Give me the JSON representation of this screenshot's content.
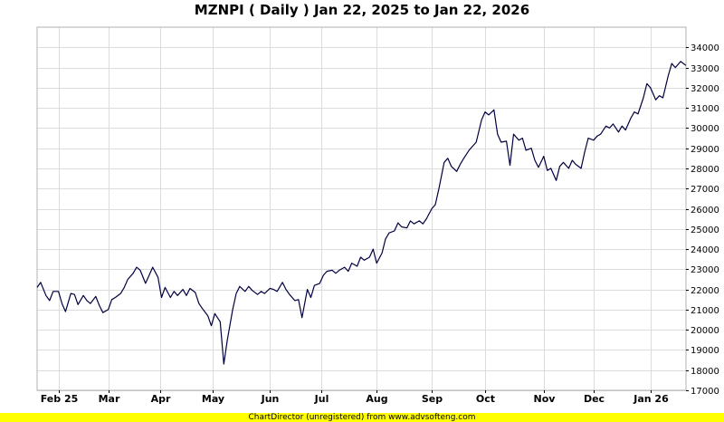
{
  "footer_text": "ChartDirector (unregistered) from www.advsofteng.com",
  "colors": {
    "line": "#000040",
    "grid": "#dcdcdc",
    "footer_bg": "#ffff00"
  },
  "chart_data": {
    "type": "line",
    "title": "MZNPI ( Daily ) Jan 22, 2025 to Jan 22, 2026",
    "xlabel": "",
    "ylabel": "",
    "ylim": [
      17000,
      35000
    ],
    "y_ticks": [
      17000,
      18000,
      19000,
      20000,
      21000,
      22000,
      23000,
      24000,
      25000,
      26000,
      27000,
      28000,
      29000,
      30000,
      31000,
      32000,
      33000,
      34000
    ],
    "x_range": [
      "2025-01-22",
      "2026-01-22"
    ],
    "x_ticks": [
      {
        "label": "Feb 25",
        "date": "2025-02-03"
      },
      {
        "label": "Mar",
        "date": "2025-03-03"
      },
      {
        "label": "Apr",
        "date": "2025-04-01"
      },
      {
        "label": "May",
        "date": "2025-05-01"
      },
      {
        "label": "Jun",
        "date": "2025-06-02"
      },
      {
        "label": "Jul",
        "date": "2025-07-01"
      },
      {
        "label": "Aug",
        "date": "2025-08-01"
      },
      {
        "label": "Sep",
        "date": "2025-09-01"
      },
      {
        "label": "Oct",
        "date": "2025-10-01"
      },
      {
        "label": "Nov",
        "date": "2025-11-03"
      },
      {
        "label": "Dec",
        "date": "2025-12-01"
      },
      {
        "label": "Jan 26",
        "date": "2026-01-02"
      }
    ],
    "grid": true,
    "legend": "none",
    "series": [
      {
        "points": [
          [
            "2025-01-22",
            22100
          ],
          [
            "2025-01-24",
            22350
          ],
          [
            "2025-01-27",
            21700
          ],
          [
            "2025-01-29",
            21450
          ],
          [
            "2025-01-31",
            21900
          ],
          [
            "2025-02-03",
            21900
          ],
          [
            "2025-02-05",
            21300
          ],
          [
            "2025-02-07",
            20900
          ],
          [
            "2025-02-10",
            21800
          ],
          [
            "2025-02-12",
            21750
          ],
          [
            "2025-02-14",
            21250
          ],
          [
            "2025-02-17",
            21700
          ],
          [
            "2025-02-19",
            21450
          ],
          [
            "2025-02-21",
            21300
          ],
          [
            "2025-02-24",
            21650
          ],
          [
            "2025-02-26",
            21200
          ],
          [
            "2025-02-28",
            20850
          ],
          [
            "2025-03-03",
            21000
          ],
          [
            "2025-03-05",
            21500
          ],
          [
            "2025-03-07",
            21600
          ],
          [
            "2025-03-10",
            21800
          ],
          [
            "2025-03-12",
            22100
          ],
          [
            "2025-03-14",
            22500
          ],
          [
            "2025-03-17",
            22800
          ],
          [
            "2025-03-19",
            23100
          ],
          [
            "2025-03-21",
            22950
          ],
          [
            "2025-03-24",
            22300
          ],
          [
            "2025-03-26",
            22700
          ],
          [
            "2025-03-28",
            23100
          ],
          [
            "2025-03-31",
            22600
          ],
          [
            "2025-04-02",
            21600
          ],
          [
            "2025-04-04",
            22100
          ],
          [
            "2025-04-07",
            21600
          ],
          [
            "2025-04-09",
            21900
          ],
          [
            "2025-04-11",
            21700
          ],
          [
            "2025-04-14",
            22000
          ],
          [
            "2025-04-16",
            21700
          ],
          [
            "2025-04-18",
            22050
          ],
          [
            "2025-04-21",
            21850
          ],
          [
            "2025-04-23",
            21300
          ],
          [
            "2025-04-25",
            21050
          ],
          [
            "2025-04-28",
            20700
          ],
          [
            "2025-04-30",
            20200
          ],
          [
            "2025-05-02",
            20800
          ],
          [
            "2025-05-05",
            20400
          ],
          [
            "2025-05-07",
            18300
          ],
          [
            "2025-05-09",
            19500
          ],
          [
            "2025-05-12",
            21000
          ],
          [
            "2025-05-14",
            21800
          ],
          [
            "2025-05-16",
            22150
          ],
          [
            "2025-05-19",
            21900
          ],
          [
            "2025-05-21",
            22150
          ],
          [
            "2025-05-23",
            21950
          ],
          [
            "2025-05-26",
            21750
          ],
          [
            "2025-05-28",
            21900
          ],
          [
            "2025-05-30",
            21800
          ],
          [
            "2025-06-02",
            22050
          ],
          [
            "2025-06-04",
            22000
          ],
          [
            "2025-06-06",
            21900
          ],
          [
            "2025-06-09",
            22350
          ],
          [
            "2025-06-11",
            22000
          ],
          [
            "2025-06-13",
            21750
          ],
          [
            "2025-06-16",
            21450
          ],
          [
            "2025-06-18",
            21500
          ],
          [
            "2025-06-20",
            20600
          ],
          [
            "2025-06-23",
            22000
          ],
          [
            "2025-06-25",
            21600
          ],
          [
            "2025-06-27",
            22200
          ],
          [
            "2025-06-30",
            22300
          ],
          [
            "2025-07-02",
            22700
          ],
          [
            "2025-07-04",
            22900
          ],
          [
            "2025-07-07",
            22950
          ],
          [
            "2025-07-09",
            22800
          ],
          [
            "2025-07-11",
            22950
          ],
          [
            "2025-07-14",
            23100
          ],
          [
            "2025-07-16",
            22900
          ],
          [
            "2025-07-18",
            23300
          ],
          [
            "2025-07-21",
            23150
          ],
          [
            "2025-07-23",
            23600
          ],
          [
            "2025-07-25",
            23450
          ],
          [
            "2025-07-28",
            23600
          ],
          [
            "2025-07-30",
            24000
          ],
          [
            "2025-08-01",
            23300
          ],
          [
            "2025-08-04",
            23800
          ],
          [
            "2025-08-06",
            24500
          ],
          [
            "2025-08-08",
            24800
          ],
          [
            "2025-08-11",
            24900
          ],
          [
            "2025-08-13",
            25300
          ],
          [
            "2025-08-15",
            25100
          ],
          [
            "2025-08-18",
            25050
          ],
          [
            "2025-08-20",
            25400
          ],
          [
            "2025-08-22",
            25250
          ],
          [
            "2025-08-25",
            25400
          ],
          [
            "2025-08-27",
            25250
          ],
          [
            "2025-08-29",
            25500
          ],
          [
            "2025-09-01",
            26000
          ],
          [
            "2025-09-03",
            26200
          ],
          [
            "2025-09-05",
            27000
          ],
          [
            "2025-09-08",
            28300
          ],
          [
            "2025-09-10",
            28500
          ],
          [
            "2025-09-12",
            28100
          ],
          [
            "2025-09-15",
            27850
          ],
          [
            "2025-09-17",
            28200
          ],
          [
            "2025-09-19",
            28500
          ],
          [
            "2025-09-22",
            28900
          ],
          [
            "2025-09-24",
            29100
          ],
          [
            "2025-09-26",
            29300
          ],
          [
            "2025-09-29",
            30400
          ],
          [
            "2025-10-01",
            30800
          ],
          [
            "2025-10-03",
            30650
          ],
          [
            "2025-10-06",
            30900
          ],
          [
            "2025-10-08",
            29700
          ],
          [
            "2025-10-10",
            29300
          ],
          [
            "2025-10-13",
            29350
          ],
          [
            "2025-10-15",
            28150
          ],
          [
            "2025-10-17",
            29700
          ],
          [
            "2025-10-20",
            29400
          ],
          [
            "2025-10-22",
            29500
          ],
          [
            "2025-10-24",
            28900
          ],
          [
            "2025-10-27",
            29000
          ],
          [
            "2025-10-29",
            28400
          ],
          [
            "2025-10-31",
            28050
          ],
          [
            "2025-11-03",
            28600
          ],
          [
            "2025-11-05",
            27900
          ],
          [
            "2025-11-07",
            28000
          ],
          [
            "2025-11-10",
            27400
          ],
          [
            "2025-11-12",
            28100
          ],
          [
            "2025-11-14",
            28300
          ],
          [
            "2025-11-17",
            28000
          ],
          [
            "2025-11-19",
            28400
          ],
          [
            "2025-11-21",
            28200
          ],
          [
            "2025-11-24",
            28000
          ],
          [
            "2025-11-26",
            28800
          ],
          [
            "2025-11-28",
            29500
          ],
          [
            "2025-12-01",
            29400
          ],
          [
            "2025-12-03",
            29600
          ],
          [
            "2025-12-05",
            29700
          ],
          [
            "2025-12-08",
            30100
          ],
          [
            "2025-12-10",
            30000
          ],
          [
            "2025-12-12",
            30200
          ],
          [
            "2025-12-15",
            29800
          ],
          [
            "2025-12-17",
            30100
          ],
          [
            "2025-12-19",
            29900
          ],
          [
            "2025-12-22",
            30500
          ],
          [
            "2025-12-24",
            30800
          ],
          [
            "2025-12-26",
            30700
          ],
          [
            "2025-12-29",
            31500
          ],
          [
            "2025-12-31",
            32200
          ],
          [
            "2026-01-02",
            32000
          ],
          [
            "2026-01-05",
            31400
          ],
          [
            "2026-01-07",
            31600
          ],
          [
            "2026-01-09",
            31500
          ],
          [
            "2026-01-12",
            32600
          ],
          [
            "2026-01-14",
            33200
          ],
          [
            "2026-01-16",
            33000
          ],
          [
            "2026-01-19",
            33300
          ],
          [
            "2026-01-22",
            33100
          ]
        ]
      }
    ]
  }
}
